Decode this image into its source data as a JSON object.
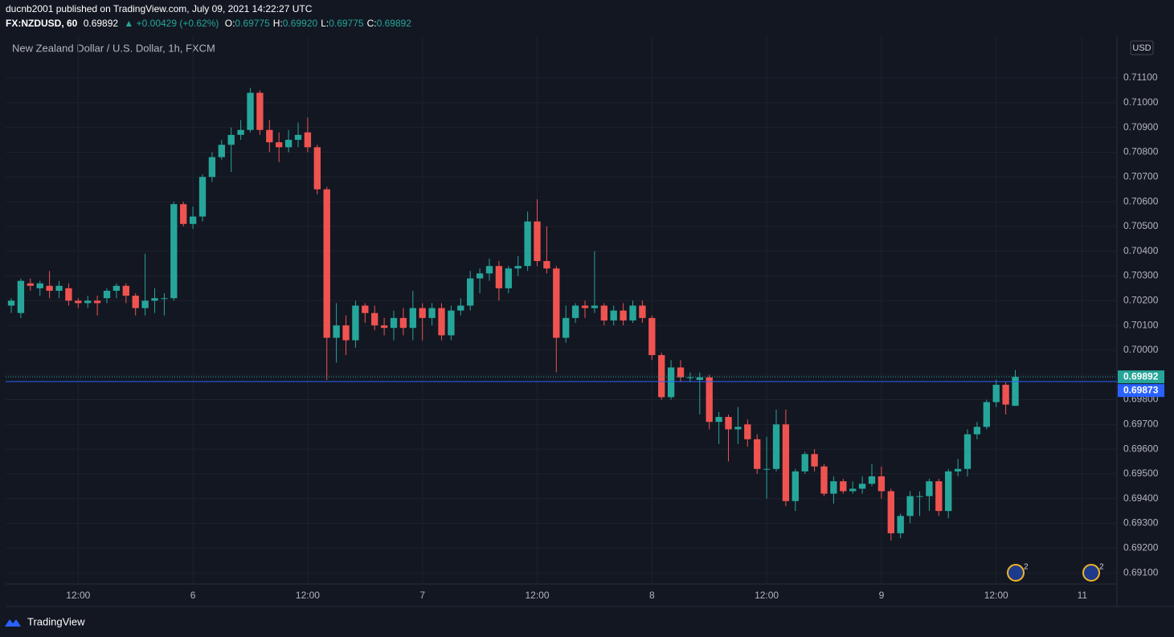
{
  "header": {
    "publisher": "ducnb2001 published on TradingView.com, July 09, 2021 14:22:27 UTC",
    "symbol": "FX:NZDUSD, 60",
    "price": "0.69892",
    "change": "▲ +0.00429 (+0.62%)",
    "ohlc": [
      {
        "label": "O:",
        "value": "0.69775"
      },
      {
        "label": "H:",
        "value": "0.69920"
      },
      {
        "label": "L:",
        "value": "0.69775"
      },
      {
        "label": "C:",
        "value": "0.69892"
      }
    ]
  },
  "footer": {
    "brand": "TradingView"
  },
  "chart_data": {
    "type": "candlestick",
    "title": "New Zealand Dollar / U.S. Dollar, 1h, FXCM",
    "currency": "USD",
    "up_color": "#26a69a",
    "down_color": "#ef5350",
    "grid": true,
    "xlim": [
      -0.59,
      115.63
    ],
    "xticks": [
      {
        "value": 7,
        "label": "12:00"
      },
      {
        "value": 19,
        "label": "6"
      },
      {
        "value": 31,
        "label": "12:00"
      },
      {
        "value": 43,
        "label": "7"
      },
      {
        "value": 55,
        "label": "12:00"
      },
      {
        "value": 67,
        "label": "8"
      },
      {
        "value": 79,
        "label": "12:00"
      },
      {
        "value": 91,
        "label": "9"
      },
      {
        "value": 103,
        "label": "12:00"
      },
      {
        "value": 112,
        "label": "11"
      }
    ],
    "ylim": [
      0.69055,
      0.71269
    ],
    "yticks": [
      {
        "value": 0.691,
        "label": "0.69100"
      },
      {
        "value": 0.692,
        "label": "0.69200"
      },
      {
        "value": 0.693,
        "label": "0.69300"
      },
      {
        "value": 0.694,
        "label": "0.69400"
      },
      {
        "value": 0.695,
        "label": "0.69500"
      },
      {
        "value": 0.696,
        "label": "0.69600"
      },
      {
        "value": 0.697,
        "label": "0.69700"
      },
      {
        "value": 0.698,
        "label": "0.69800"
      },
      {
        "value": 0.699,
        "label": "0.69900"
      },
      {
        "value": 0.7,
        "label": "0.70000"
      },
      {
        "value": 0.701,
        "label": "0.70100"
      },
      {
        "value": 0.702,
        "label": "0.70200"
      },
      {
        "value": 0.703,
        "label": "0.70300"
      },
      {
        "value": 0.704,
        "label": "0.70400"
      },
      {
        "value": 0.705,
        "label": "0.70500"
      },
      {
        "value": 0.706,
        "label": "0.70600"
      },
      {
        "value": 0.707,
        "label": "0.70700"
      },
      {
        "value": 0.708,
        "label": "0.70800"
      },
      {
        "value": 0.709,
        "label": "0.70900"
      },
      {
        "value": 0.71,
        "label": "0.71000"
      },
      {
        "value": 0.711,
        "label": "0.71100"
      }
    ],
    "price_lines": [
      {
        "value": 0.69892,
        "label": "0.69892",
        "color": "#26a69a"
      },
      {
        "value": 0.69873,
        "label": "0.69873",
        "color": "#2962ff"
      }
    ],
    "event_badges": [
      "2",
      "2"
    ],
    "open": [
      0.7018,
      0.7015,
      0.7027,
      0.7025,
      0.7026,
      0.7024,
      0.7025,
      0.702,
      0.7019,
      0.702,
      0.7021,
      0.7024,
      0.7026,
      0.7022,
      0.7017,
      0.702,
      0.7021,
      0.7021,
      0.7059,
      0.7051,
      0.7054,
      0.707,
      0.7078,
      0.7083,
      0.7087,
      0.7089,
      0.7104,
      0.7089,
      0.7084,
      0.7082,
      0.7085,
      0.7088,
      0.7082,
      0.7065,
      0.7005,
      0.701,
      0.7004,
      0.7018,
      0.7015,
      0.701,
      0.7009,
      0.7013,
      0.7009,
      0.7017,
      0.7013,
      0.7017,
      0.7006,
      0.7016,
      0.7018,
      0.7029,
      0.7031,
      0.7034,
      0.7025,
      0.7033,
      0.7034,
      0.7052,
      0.7036,
      0.7033,
      0.7005,
      0.7013,
      0.7018,
      0.7017,
      0.7018,
      0.7012,
      0.7016,
      0.7012,
      0.7018,
      0.7013,
      0.6998,
      0.6981,
      0.6993,
      0.6989,
      0.6988,
      0.6989,
      0.6971,
      0.6973,
      0.6968,
      0.697,
      0.6964,
      0.6952,
      0.6952,
      0.697,
      0.6939,
      0.6951,
      0.6958,
      0.6953,
      0.6942,
      0.6947,
      0.6943,
      0.6944,
      0.6946,
      0.6949,
      0.6943,
      0.6926,
      0.6933,
      0.6941,
      0.6941,
      0.6947,
      0.6935,
      0.6951,
      0.6952,
      0.6966,
      0.6969,
      0.6979,
      0.6986,
      0.69775
    ],
    "high": [
      0.7021,
      0.7029,
      0.7029,
      0.7028,
      0.7032,
      0.7028,
      0.7027,
      0.7021,
      0.7022,
      0.7022,
      0.7025,
      0.7027,
      0.7027,
      0.7023,
      0.7039,
      0.7025,
      0.7023,
      0.706,
      0.706,
      0.7058,
      0.7071,
      0.708,
      0.7085,
      0.709,
      0.7093,
      0.7106,
      0.7105,
      0.7093,
      0.7088,
      0.7089,
      0.7092,
      0.7094,
      0.7083,
      0.7066,
      0.7019,
      0.7014,
      0.702,
      0.7019,
      0.7018,
      0.7013,
      0.7016,
      0.7017,
      0.7024,
      0.7019,
      0.7019,
      0.7019,
      0.7018,
      0.7021,
      0.7032,
      0.7033,
      0.7037,
      0.7036,
      0.7034,
      0.7038,
      0.7056,
      0.7061,
      0.705,
      0.7034,
      0.7018,
      0.7019,
      0.702,
      0.704,
      0.7019,
      0.7018,
      0.7019,
      0.702,
      0.702,
      0.7014,
      0.6999,
      0.6996,
      0.6996,
      0.6991,
      0.6991,
      0.699,
      0.6975,
      0.6974,
      0.6977,
      0.6972,
      0.6966,
      0.6965,
      0.6976,
      0.6976,
      0.6952,
      0.6959,
      0.696,
      0.6954,
      0.6949,
      0.6948,
      0.6947,
      0.6949,
      0.6954,
      0.6953,
      0.6944,
      0.6934,
      0.6943,
      0.6943,
      0.6948,
      0.6948,
      0.6952,
      0.6956,
      0.6968,
      0.6971,
      0.698,
      0.6988,
      0.6987,
      0.6992
    ],
    "low": [
      0.7015,
      0.7013,
      0.7024,
      0.7022,
      0.7021,
      0.7021,
      0.7018,
      0.7017,
      0.7017,
      0.7014,
      0.7019,
      0.7021,
      0.7019,
      0.7014,
      0.7014,
      0.7015,
      0.7014,
      0.702,
      0.705,
      0.7049,
      0.7052,
      0.7068,
      0.7077,
      0.7072,
      0.7085,
      0.7088,
      0.7087,
      0.708,
      0.7076,
      0.708,
      0.7082,
      0.708,
      0.7063,
      0.6988,
      0.6995,
      0.6998,
      0.7001,
      0.7011,
      0.7008,
      0.7006,
      0.7004,
      0.7006,
      0.7004,
      0.7004,
      0.701,
      0.7004,
      0.7004,
      0.7014,
      0.7016,
      0.7023,
      0.7028,
      0.702,
      0.7023,
      0.703,
      0.7032,
      0.7034,
      0.7031,
      0.6991,
      0.7003,
      0.7011,
      0.7013,
      0.7015,
      0.701,
      0.701,
      0.701,
      0.7011,
      0.7011,
      0.6996,
      0.698,
      0.698,
      0.6987,
      0.6987,
      0.6974,
      0.6968,
      0.6962,
      0.6955,
      0.6962,
      0.6961,
      0.695,
      0.694,
      0.6951,
      0.6937,
      0.6935,
      0.695,
      0.6951,
      0.6941,
      0.6938,
      0.6942,
      0.6942,
      0.6942,
      0.6945,
      0.694,
      0.6923,
      0.6924,
      0.693,
      0.6933,
      0.6935,
      0.6933,
      0.6932,
      0.6949,
      0.6949,
      0.6964,
      0.6968,
      0.6977,
      0.6974,
      0.69775
    ],
    "close": [
      0.702,
      0.7028,
      0.7026,
      0.7027,
      0.7024,
      0.7026,
      0.702,
      0.7019,
      0.702,
      0.7019,
      0.7024,
      0.7026,
      0.7022,
      0.7017,
      0.702,
      0.7021,
      0.7021,
      0.7059,
      0.7051,
      0.7054,
      0.707,
      0.7078,
      0.7083,
      0.7087,
      0.7089,
      0.7104,
      0.7089,
      0.7084,
      0.7082,
      0.7085,
      0.7087,
      0.7082,
      0.7065,
      0.7005,
      0.701,
      0.7004,
      0.7018,
      0.7015,
      0.701,
      0.7009,
      0.7013,
      0.7009,
      0.7017,
      0.7013,
      0.7017,
      0.7006,
      0.7016,
      0.7018,
      0.7029,
      0.7031,
      0.7034,
      0.7025,
      0.7033,
      0.7034,
      0.7052,
      0.7036,
      0.7033,
      0.7005,
      0.7013,
      0.7018,
      0.7017,
      0.7018,
      0.7012,
      0.7016,
      0.7012,
      0.7018,
      0.7013,
      0.6998,
      0.6981,
      0.6993,
      0.6989,
      0.6989,
      0.6989,
      0.6971,
      0.6973,
      0.6968,
      0.6969,
      0.6964,
      0.6952,
      0.6952,
      0.697,
      0.6939,
      0.6951,
      0.6958,
      0.6953,
      0.6942,
      0.6947,
      0.6943,
      0.6944,
      0.6946,
      0.6949,
      0.6943,
      0.6926,
      0.6933,
      0.6941,
      0.6941,
      0.6947,
      0.6935,
      0.6951,
      0.6952,
      0.6966,
      0.6969,
      0.6979,
      0.6986,
      0.6978,
      0.69892
    ]
  }
}
